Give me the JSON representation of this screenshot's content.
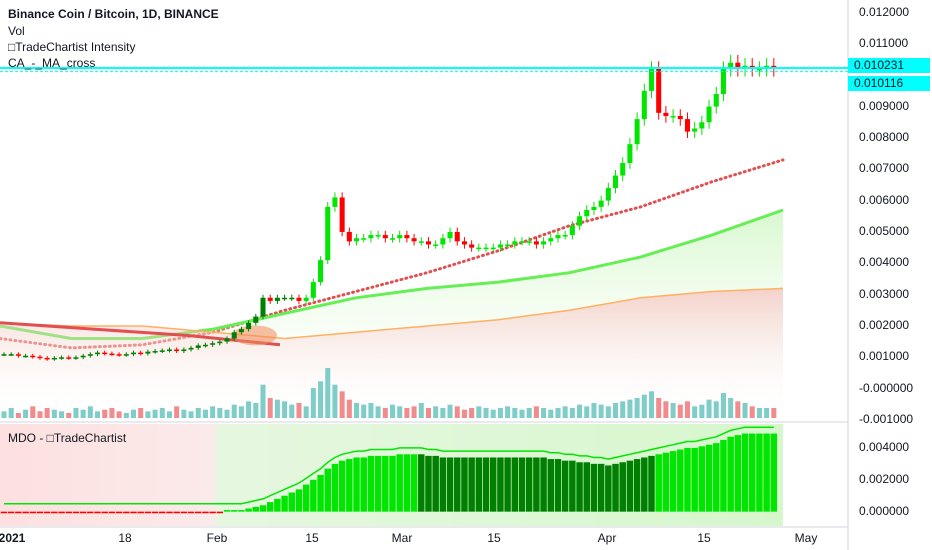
{
  "header": {
    "title": "Binance Coin / Bitcoin, 1D, BINANCE",
    "indicators": [
      "Vol",
      "□TradeChartist Intensity",
      "CA_-_MA_cross"
    ]
  },
  "price_badges": [
    "0.010231",
    "0.010116"
  ],
  "colors": {
    "up": "#00e600",
    "up_dark": "#008000",
    "down": "#ff0000",
    "volume_up": "#7fcdc9",
    "volume_down": "#f28b8b",
    "ma_red": "#e05050",
    "ma_green": "#66ee55",
    "ma_orange": "#ffb060",
    "level_line": "#00ffff"
  },
  "chart_data": {
    "type": "candlestick",
    "title": "Binance Coin / Bitcoin, 1D, BINANCE",
    "x_tick_labels": [
      "2021",
      "18",
      "Feb",
      "15",
      "Mar",
      "15",
      "Apr",
      "15",
      "May"
    ],
    "y_tick_labels": [
      "0.012000",
      "0.011000",
      "0.009000",
      "0.008000",
      "0.007000",
      "0.006000",
      "0.005000",
      "0.004000",
      "0.003000",
      "0.002000",
      "0.001000",
      "-0.000000",
      "-0.001000"
    ],
    "ylim": [
      -0.001,
      0.0124
    ],
    "price_series": [
      0.0011,
      0.0011,
      0.00105,
      0.00105,
      0.00102,
      0.00098,
      0.00095,
      0.00098,
      0.001,
      0.00098,
      0.001,
      0.00105,
      0.0011,
      0.00115,
      0.00112,
      0.0011,
      0.00108,
      0.0011,
      0.00115,
      0.00112,
      0.00118,
      0.0012,
      0.00122,
      0.00125,
      0.0012,
      0.00125,
      0.0013,
      0.00138,
      0.0014,
      0.00145,
      0.0015,
      0.0016,
      0.0018,
      0.0019,
      0.0021,
      0.0023,
      0.0029,
      0.0028,
      0.0029,
      0.0029,
      0.0029,
      0.0028,
      0.0029,
      0.0034,
      0.0041,
      0.0058,
      0.0061,
      0.005,
      0.0047,
      0.0048,
      0.0048,
      0.0049,
      0.0049,
      0.0048,
      0.0048,
      0.0049,
      0.0048,
      0.0047,
      0.0047,
      0.0046,
      0.0046,
      0.0048,
      0.005,
      0.0047,
      0.0046,
      0.0045,
      0.0045,
      0.0045,
      0.0045,
      0.0046,
      0.0046,
      0.0047,
      0.0047,
      0.0047,
      0.0046,
      0.0047,
      0.0048,
      0.0049,
      0.0049,
      0.0052,
      0.0055,
      0.0057,
      0.0058,
      0.006,
      0.0064,
      0.0068,
      0.0072,
      0.0078,
      0.0086,
      0.0095,
      0.0102,
      0.0088,
      0.0087,
      0.0087,
      0.0086,
      0.0082,
      0.0083,
      0.0085,
      0.009,
      0.0094,
      0.0102,
      0.0104,
      0.0102,
      0.0103,
      0.0102,
      0.0102,
      0.0103,
      0.0102
    ],
    "moving_averages": [
      {
        "color": "#e05050",
        "style": "dotted",
        "values": [
          0.0016,
          0.0013,
          0.0014,
          0.0018,
          0.0025,
          0.0031,
          0.0037,
          0.0044,
          0.0052,
          0.0058,
          0.0066,
          0.0073
        ]
      },
      {
        "color": "#66ee55",
        "style": "solid",
        "values": [
          0.002,
          0.0016,
          0.0016,
          0.0019,
          0.0024,
          0.0029,
          0.0032,
          0.0034,
          0.0037,
          0.0042,
          0.0049,
          0.0057
        ]
      },
      {
        "color": "#ffb060",
        "style": "solid",
        "values": [
          0.0021,
          0.002,
          0.002,
          0.0018,
          0.0016,
          0.0018,
          0.002,
          0.0022,
          0.0025,
          0.0029,
          0.0031,
          0.0032
        ]
      },
      {
        "color": "#e05050",
        "style": "solid",
        "values": [
          0.0021,
          0.0019,
          0.0017,
          0.0014
        ]
      }
    ],
    "price_levels": [
      0.010231,
      0.010116
    ],
    "volume": [
      0.2,
      0.3,
      0.15,
      0.25,
      0.35,
      0.2,
      0.3,
      0.25,
      0.2,
      0.15,
      0.3,
      0.25,
      0.35,
      0.2,
      0.25,
      0.3,
      0.2,
      0.15,
      0.25,
      0.3,
      0.2,
      0.25,
      0.3,
      0.2,
      0.35,
      0.25,
      0.2,
      0.3,
      0.25,
      0.35,
      0.3,
      0.25,
      0.4,
      0.35,
      0.5,
      0.45,
      1.0,
      0.6,
      0.55,
      0.5,
      0.4,
      0.45,
      0.35,
      0.9,
      1.1,
      1.5,
      1.0,
      0.8,
      0.55,
      0.45,
      0.4,
      0.45,
      0.35,
      0.3,
      0.4,
      0.35,
      0.3,
      0.35,
      0.45,
      0.3,
      0.35,
      0.3,
      0.4,
      0.35,
      0.25,
      0.3,
      0.35,
      0.3,
      0.25,
      0.3,
      0.35,
      0.3,
      0.25,
      0.3,
      0.35,
      0.3,
      0.25,
      0.3,
      0.35,
      0.3,
      0.4,
      0.35,
      0.45,
      0.4,
      0.35,
      0.45,
      0.5,
      0.55,
      0.6,
      0.7,
      0.8,
      0.6,
      0.5,
      0.45,
      0.4,
      0.5,
      0.35,
      0.4,
      0.55,
      0.5,
      0.75,
      0.6,
      0.5,
      0.45,
      0.35,
      0.3,
      0.3,
      0.3
    ],
    "oscillator": {
      "title": "MDO - □TradeChartist",
      "y_tick_labels": [
        "0.004000",
        "0.002000",
        "0.000000"
      ],
      "ylim": [
        -0.0009,
        0.0055
      ],
      "values": [
        -0.0001,
        -0.0001,
        -0.0001,
        -0.0001,
        -0.0001,
        -0.0001,
        -0.0001,
        -0.0001,
        -0.0001,
        -0.0001,
        -0.0001,
        -0.0001,
        -0.0001,
        -0.0001,
        -0.0001,
        -0.0001,
        -0.0001,
        -0.0001,
        -0.0001,
        -0.0001,
        -0.0001,
        -0.0001,
        -0.0001,
        -0.0001,
        -0.0001,
        -0.0001,
        -0.0001,
        -0.0001,
        -0.0001,
        -0.0001,
        -0.0001,
        0.0001,
        0.0001,
        0.0001,
        0.0002,
        0.0003,
        0.0004,
        0.0006,
        0.0008,
        0.001,
        0.0012,
        0.0014,
        0.0017,
        0.002,
        0.0023,
        0.0027,
        0.003,
        0.0032,
        0.0033,
        0.0034,
        0.0034,
        0.0035,
        0.0035,
        0.0035,
        0.0035,
        0.0036,
        0.0036,
        0.0036,
        0.0036,
        0.0035,
        0.0035,
        0.0034,
        0.0034,
        0.0034,
        0.0034,
        0.0034,
        0.0034,
        0.0034,
        0.0034,
        0.0034,
        0.0034,
        0.0034,
        0.0034,
        0.0034,
        0.0034,
        0.0034,
        0.0033,
        0.0033,
        0.0032,
        0.0032,
        0.0031,
        0.0031,
        0.003,
        0.003,
        0.0029,
        0.003,
        0.0031,
        0.0032,
        0.0033,
        0.0034,
        0.0035,
        0.0036,
        0.0037,
        0.0038,
        0.0039,
        0.004,
        0.004,
        0.0041,
        0.0042,
        0.0043,
        0.0045,
        0.0047,
        0.0048,
        0.0049,
        0.0049,
        0.0049,
        0.0049,
        0.0049
      ]
    }
  }
}
